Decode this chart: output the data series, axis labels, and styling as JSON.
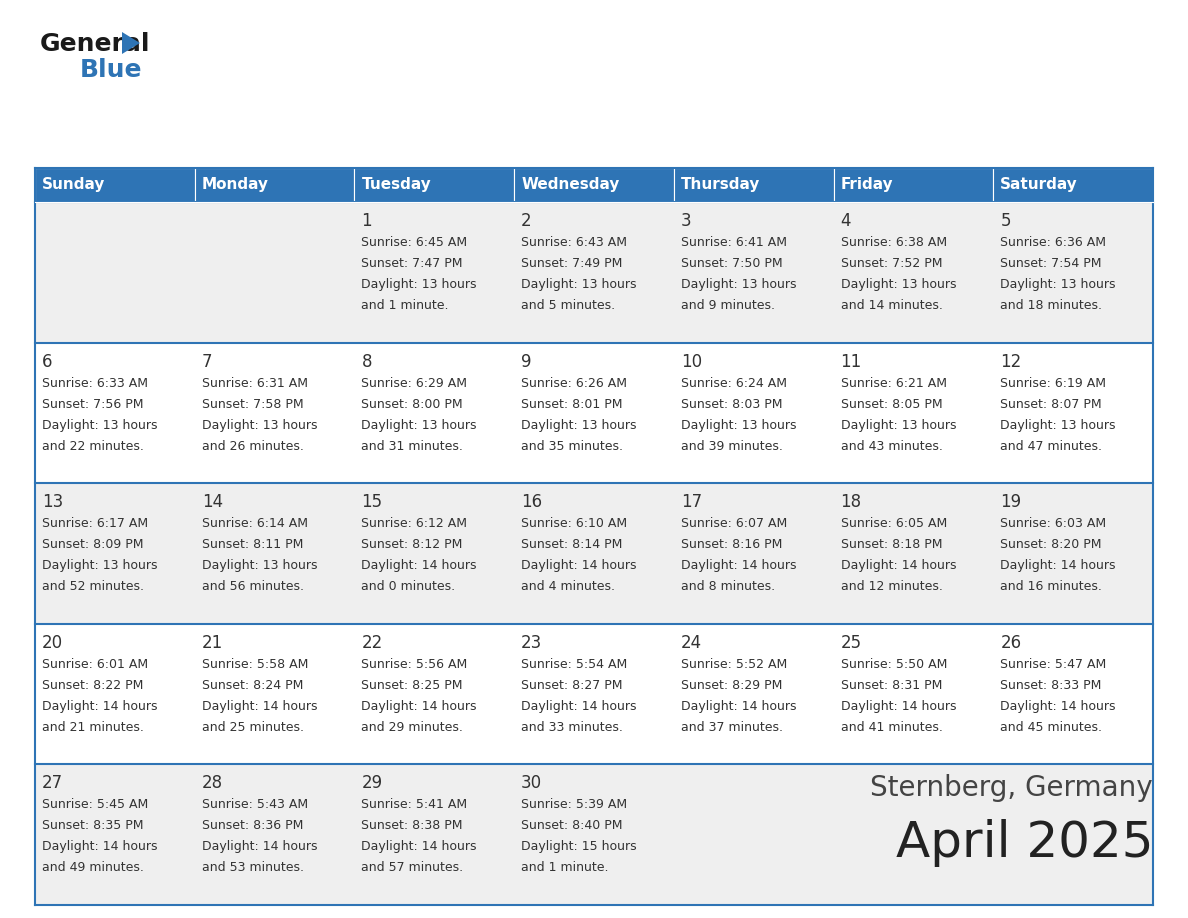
{
  "title": "April 2025",
  "subtitle": "Sternberg, Germany",
  "header_bg": "#2E74B5",
  "header_text_color": "#FFFFFF",
  "cell_bg_odd": "#EFEFEF",
  "cell_bg_even": "#FFFFFF",
  "border_color": "#2E74B5",
  "text_color": "#333333",
  "days_of_week": [
    "Sunday",
    "Monday",
    "Tuesday",
    "Wednesday",
    "Thursday",
    "Friday",
    "Saturday"
  ],
  "weeks": [
    [
      {
        "day": "",
        "sunrise": "",
        "sunset": "",
        "daylight": ""
      },
      {
        "day": "",
        "sunrise": "",
        "sunset": "",
        "daylight": ""
      },
      {
        "day": "1",
        "sunrise": "Sunrise: 6:45 AM",
        "sunset": "Sunset: 7:47 PM",
        "daylight": "Daylight: 13 hours\nand 1 minute."
      },
      {
        "day": "2",
        "sunrise": "Sunrise: 6:43 AM",
        "sunset": "Sunset: 7:49 PM",
        "daylight": "Daylight: 13 hours\nand 5 minutes."
      },
      {
        "day": "3",
        "sunrise": "Sunrise: 6:41 AM",
        "sunset": "Sunset: 7:50 PM",
        "daylight": "Daylight: 13 hours\nand 9 minutes."
      },
      {
        "day": "4",
        "sunrise": "Sunrise: 6:38 AM",
        "sunset": "Sunset: 7:52 PM",
        "daylight": "Daylight: 13 hours\nand 14 minutes."
      },
      {
        "day": "5",
        "sunrise": "Sunrise: 6:36 AM",
        "sunset": "Sunset: 7:54 PM",
        "daylight": "Daylight: 13 hours\nand 18 minutes."
      }
    ],
    [
      {
        "day": "6",
        "sunrise": "Sunrise: 6:33 AM",
        "sunset": "Sunset: 7:56 PM",
        "daylight": "Daylight: 13 hours\nand 22 minutes."
      },
      {
        "day": "7",
        "sunrise": "Sunrise: 6:31 AM",
        "sunset": "Sunset: 7:58 PM",
        "daylight": "Daylight: 13 hours\nand 26 minutes."
      },
      {
        "day": "8",
        "sunrise": "Sunrise: 6:29 AM",
        "sunset": "Sunset: 8:00 PM",
        "daylight": "Daylight: 13 hours\nand 31 minutes."
      },
      {
        "day": "9",
        "sunrise": "Sunrise: 6:26 AM",
        "sunset": "Sunset: 8:01 PM",
        "daylight": "Daylight: 13 hours\nand 35 minutes."
      },
      {
        "day": "10",
        "sunrise": "Sunrise: 6:24 AM",
        "sunset": "Sunset: 8:03 PM",
        "daylight": "Daylight: 13 hours\nand 39 minutes."
      },
      {
        "day": "11",
        "sunrise": "Sunrise: 6:21 AM",
        "sunset": "Sunset: 8:05 PM",
        "daylight": "Daylight: 13 hours\nand 43 minutes."
      },
      {
        "day": "12",
        "sunrise": "Sunrise: 6:19 AM",
        "sunset": "Sunset: 8:07 PM",
        "daylight": "Daylight: 13 hours\nand 47 minutes."
      }
    ],
    [
      {
        "day": "13",
        "sunrise": "Sunrise: 6:17 AM",
        "sunset": "Sunset: 8:09 PM",
        "daylight": "Daylight: 13 hours\nand 52 minutes."
      },
      {
        "day": "14",
        "sunrise": "Sunrise: 6:14 AM",
        "sunset": "Sunset: 8:11 PM",
        "daylight": "Daylight: 13 hours\nand 56 minutes."
      },
      {
        "day": "15",
        "sunrise": "Sunrise: 6:12 AM",
        "sunset": "Sunset: 8:12 PM",
        "daylight": "Daylight: 14 hours\nand 0 minutes."
      },
      {
        "day": "16",
        "sunrise": "Sunrise: 6:10 AM",
        "sunset": "Sunset: 8:14 PM",
        "daylight": "Daylight: 14 hours\nand 4 minutes."
      },
      {
        "day": "17",
        "sunrise": "Sunrise: 6:07 AM",
        "sunset": "Sunset: 8:16 PM",
        "daylight": "Daylight: 14 hours\nand 8 minutes."
      },
      {
        "day": "18",
        "sunrise": "Sunrise: 6:05 AM",
        "sunset": "Sunset: 8:18 PM",
        "daylight": "Daylight: 14 hours\nand 12 minutes."
      },
      {
        "day": "19",
        "sunrise": "Sunrise: 6:03 AM",
        "sunset": "Sunset: 8:20 PM",
        "daylight": "Daylight: 14 hours\nand 16 minutes."
      }
    ],
    [
      {
        "day": "20",
        "sunrise": "Sunrise: 6:01 AM",
        "sunset": "Sunset: 8:22 PM",
        "daylight": "Daylight: 14 hours\nand 21 minutes."
      },
      {
        "day": "21",
        "sunrise": "Sunrise: 5:58 AM",
        "sunset": "Sunset: 8:24 PM",
        "daylight": "Daylight: 14 hours\nand 25 minutes."
      },
      {
        "day": "22",
        "sunrise": "Sunrise: 5:56 AM",
        "sunset": "Sunset: 8:25 PM",
        "daylight": "Daylight: 14 hours\nand 29 minutes."
      },
      {
        "day": "23",
        "sunrise": "Sunrise: 5:54 AM",
        "sunset": "Sunset: 8:27 PM",
        "daylight": "Daylight: 14 hours\nand 33 minutes."
      },
      {
        "day": "24",
        "sunrise": "Sunrise: 5:52 AM",
        "sunset": "Sunset: 8:29 PM",
        "daylight": "Daylight: 14 hours\nand 37 minutes."
      },
      {
        "day": "25",
        "sunrise": "Sunrise: 5:50 AM",
        "sunset": "Sunset: 8:31 PM",
        "daylight": "Daylight: 14 hours\nand 41 minutes."
      },
      {
        "day": "26",
        "sunrise": "Sunrise: 5:47 AM",
        "sunset": "Sunset: 8:33 PM",
        "daylight": "Daylight: 14 hours\nand 45 minutes."
      }
    ],
    [
      {
        "day": "27",
        "sunrise": "Sunrise: 5:45 AM",
        "sunset": "Sunset: 8:35 PM",
        "daylight": "Daylight: 14 hours\nand 49 minutes."
      },
      {
        "day": "28",
        "sunrise": "Sunrise: 5:43 AM",
        "sunset": "Sunset: 8:36 PM",
        "daylight": "Daylight: 14 hours\nand 53 minutes."
      },
      {
        "day": "29",
        "sunrise": "Sunrise: 5:41 AM",
        "sunset": "Sunset: 8:38 PM",
        "daylight": "Daylight: 14 hours\nand 57 minutes."
      },
      {
        "day": "30",
        "sunrise": "Sunrise: 5:39 AM",
        "sunset": "Sunset: 8:40 PM",
        "daylight": "Daylight: 15 hours\nand 1 minute."
      },
      {
        "day": "",
        "sunrise": "",
        "sunset": "",
        "daylight": ""
      },
      {
        "day": "",
        "sunrise": "",
        "sunset": "",
        "daylight": ""
      },
      {
        "day": "",
        "sunrise": "",
        "sunset": "",
        "daylight": ""
      }
    ]
  ],
  "fig_width": 11.88,
  "fig_height": 9.18,
  "dpi": 100
}
